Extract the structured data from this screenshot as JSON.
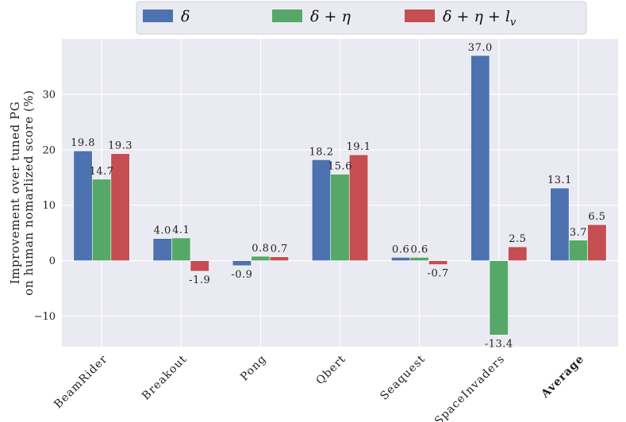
{
  "chart_data": {
    "type": "bar",
    "categories": [
      "BeamRider",
      "Breakout",
      "Pong",
      "Qbert",
      "Seaquest",
      "SpaceInvaders",
      "Average"
    ],
    "bold_categories": [
      "Average"
    ],
    "series": [
      {
        "name": "δ",
        "color": "#4c72b0",
        "values": [
          19.8,
          4.0,
          -0.9,
          18.2,
          0.6,
          37.0,
          13.1
        ]
      },
      {
        "name": "δ + η",
        "color": "#55a868",
        "values": [
          14.7,
          4.1,
          0.8,
          15.6,
          0.6,
          -13.4,
          3.7
        ]
      },
      {
        "name": "δ + η + l_v",
        "color": "#c44e52",
        "values": [
          19.3,
          -1.9,
          0.7,
          19.1,
          -0.7,
          2.5,
          6.5
        ]
      }
    ],
    "data_labels": [
      [
        "19.8",
        "4.0",
        "-0.9",
        "18.2",
        "0.6",
        "37.0",
        "13.1"
      ],
      [
        "14.7",
        "4.1",
        "0.8",
        "15.6",
        "0.6",
        "-13.4",
        "3.7"
      ],
      [
        "19.3",
        "-1.9",
        "0.7",
        "19.1",
        "-0.7",
        "2.5",
        "6.5"
      ]
    ],
    "ylabel": "Improvement over tuned PG\non human nomarlized score (%)",
    "ylim": [
      -15.5,
      40
    ],
    "yticks": [
      -10,
      0,
      10,
      20,
      30
    ],
    "ytick_labels": [
      "−10",
      "0",
      "10",
      "20",
      "30"
    ],
    "grid": true,
    "legend_position": "top"
  }
}
